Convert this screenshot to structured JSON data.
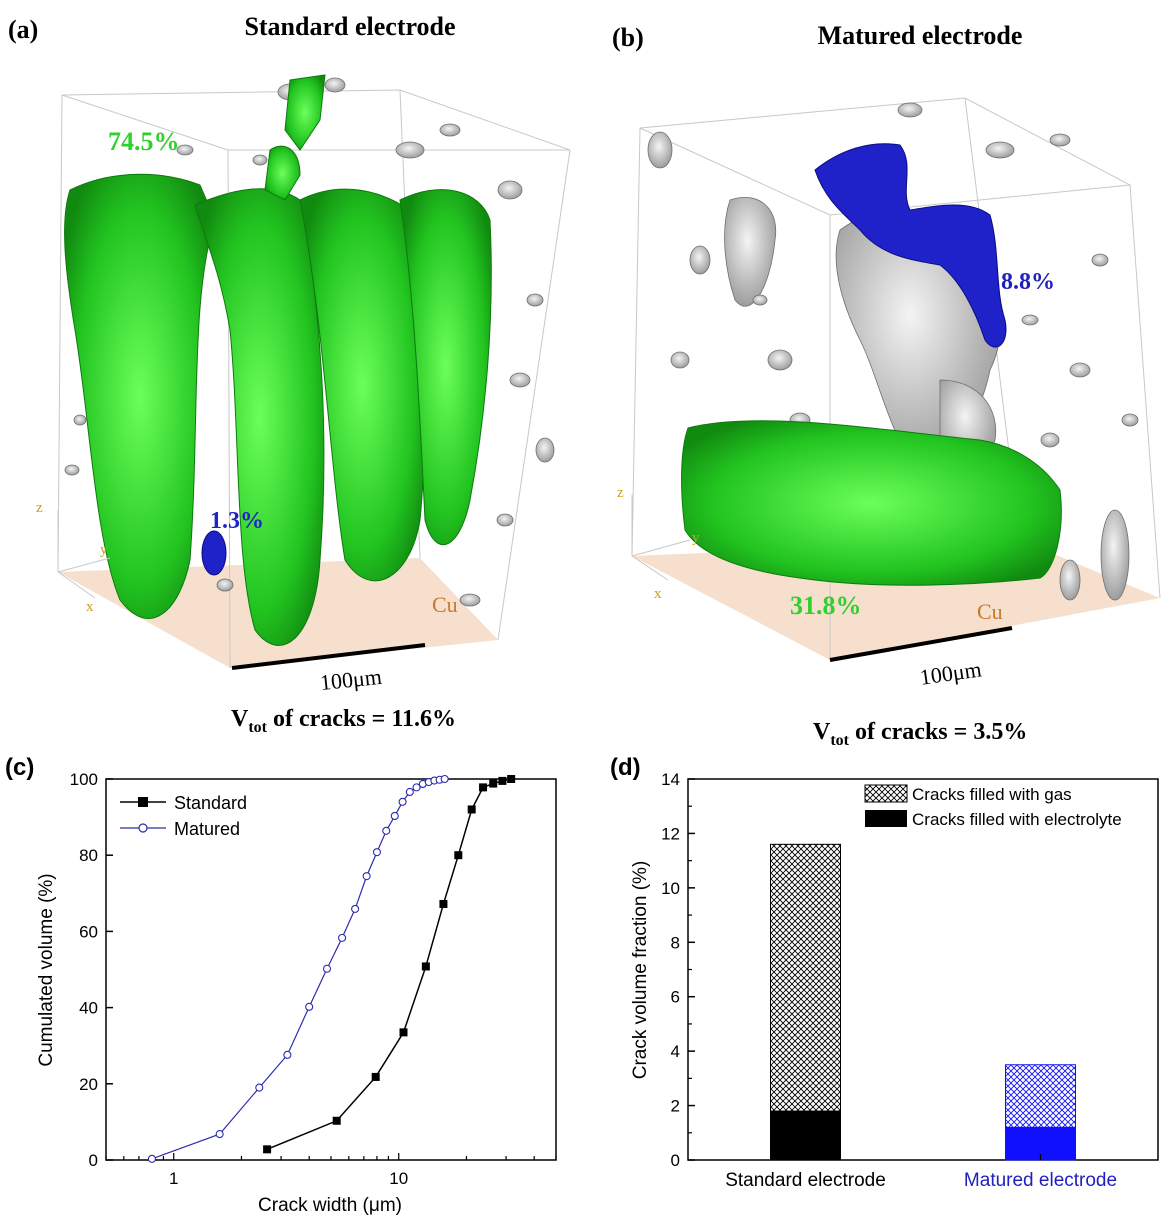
{
  "colors": {
    "crack_green": "#2fd12a",
    "electrolyte_blue": "#1e22c8",
    "particle_grey": "#9c9c9c",
    "cu_plane": "#f6dfcc",
    "label_orange": "#c87a2a",
    "axis_yellow": "#c8a020",
    "standard_line": "#000000",
    "matured_line": "#2b2bb0",
    "matured_bar": "#1010ff",
    "matured_label": "#2020c0"
  },
  "panel_a": {
    "letter": "(a)",
    "title": "Standard electrode",
    "gas_pct": "74.5%",
    "electrolyte_pct": "1.3%",
    "axis_x": "x",
    "axis_y": "y",
    "axis_z": "z",
    "substrate": "Cu",
    "scale": "100μm",
    "vtot_main": "V",
    "vtot_sub": "tot",
    "vtot_rest": " of cracks = 11.6%"
  },
  "panel_b": {
    "letter": "(b)",
    "title": "Matured electrode",
    "gas_pct": "31.8%",
    "electrolyte_pct": "8.8%",
    "axis_x": "x",
    "axis_y": "y",
    "axis_z": "z",
    "substrate": "Cu",
    "scale": "100μm",
    "vtot_main": "V",
    "vtot_sub": "tot",
    "vtot_rest": " of cracks = 3.5%"
  },
  "chart_data": [
    {
      "panel": "(c)",
      "type": "line",
      "xlabel": "Crack width (μm)",
      "ylabel": "Cumulated volume (%)",
      "xscale": "log",
      "xlim": [
        0.5,
        50
      ],
      "ylim": [
        0,
        100
      ],
      "xticks": [
        "1",
        "10"
      ],
      "yticks": [
        "0",
        "20",
        "40",
        "60",
        "80",
        "100"
      ],
      "legend": "top-left",
      "series": [
        {
          "name": "Standard",
          "marker": "filled-square",
          "x": [
            2.6,
            5.3,
            7.9,
            10.5,
            13.2,
            15.8,
            18.4,
            21.1,
            23.7,
            26.3,
            28.9,
            31.6
          ],
          "y": [
            2.8,
            10.3,
            21.8,
            33.5,
            50.8,
            67.2,
            80.0,
            92.0,
            97.8,
            98.8,
            99.5,
            100
          ]
        },
        {
          "name": "Matured",
          "marker": "open-circle",
          "x": [
            0.8,
            1.6,
            2.4,
            3.2,
            4.0,
            4.8,
            5.6,
            6.4,
            7.2,
            8.0,
            8.8,
            9.6,
            10.4,
            11.2,
            12.0,
            12.8,
            13.6,
            14.4,
            15.2,
            16.0
          ],
          "y": [
            0.3,
            6.8,
            19.0,
            27.6,
            40.2,
            50.2,
            58.3,
            65.9,
            74.5,
            80.8,
            86.4,
            90.3,
            94.0,
            96.6,
            97.8,
            98.7,
            99.2,
            99.6,
            99.8,
            100
          ]
        }
      ]
    },
    {
      "panel": "(d)",
      "type": "bar",
      "stacked": true,
      "ylabel": "Crack volume fraction (%)",
      "ylim": [
        0,
        14
      ],
      "yticks": [
        "0",
        "2",
        "4",
        "6",
        "8",
        "10",
        "12",
        "14"
      ],
      "categories": [
        "Standard electrode",
        "Matured electrode"
      ],
      "legend": "top-right",
      "series": [
        {
          "name": "Cracks filled with electrolyte",
          "values": [
            1.8,
            1.2
          ]
        },
        {
          "name": "Cracks filled with gas",
          "values": [
            9.8,
            2.3
          ]
        }
      ]
    }
  ]
}
